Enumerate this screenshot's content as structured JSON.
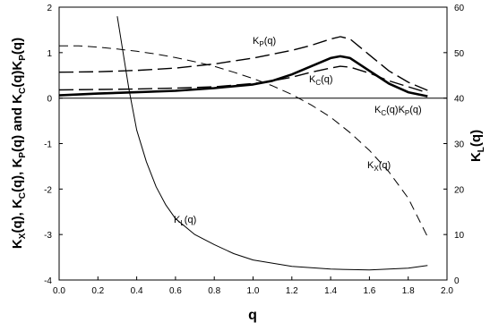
{
  "chart_data": {
    "type": "line",
    "xlabel": "q",
    "ylabel_left": "K_X(q), K_C(q), K_P(q) and K_C(q)K_P(q)",
    "ylabel_right": "K_L(q)",
    "xlim": [
      0.0,
      2.0
    ],
    "ylim_left": [
      -4,
      2
    ],
    "ylim_right": [
      0,
      60
    ],
    "grid": false,
    "x_ticks": [
      "0.0",
      "0.2",
      "0.4",
      "0.6",
      "0.8",
      "1.0",
      "1.2",
      "1.4",
      "1.6",
      "1.8",
      "2.0"
    ],
    "y_left_ticks": [
      "-4",
      "-3",
      "-2",
      "-1",
      "0",
      "1",
      "2"
    ],
    "y_right_ticks": [
      "0",
      "10",
      "20",
      "30",
      "40",
      "50",
      "60"
    ],
    "series": [
      {
        "key": "KP",
        "name": "K_P(q)",
        "axis": "left",
        "style": "long-dash",
        "x": [
          0.0,
          0.2,
          0.4,
          0.6,
          0.8,
          1.0,
          1.2,
          1.3,
          1.4,
          1.45,
          1.5,
          1.6,
          1.7,
          1.8,
          1.9
        ],
        "y": [
          0.57,
          0.58,
          0.61,
          0.66,
          0.75,
          0.88,
          1.05,
          1.16,
          1.3,
          1.35,
          1.3,
          0.95,
          0.6,
          0.35,
          0.17
        ]
      },
      {
        "key": "KC",
        "name": "K_C(q)",
        "axis": "left",
        "style": "long-dash",
        "x": [
          0.0,
          0.2,
          0.4,
          0.6,
          0.8,
          1.0,
          1.1,
          1.2,
          1.3,
          1.4,
          1.45,
          1.5,
          1.6,
          1.7,
          1.8,
          1.9
        ],
        "y": [
          0.18,
          0.19,
          0.2,
          0.22,
          0.25,
          0.32,
          0.38,
          0.46,
          0.57,
          0.66,
          0.7,
          0.68,
          0.55,
          0.38,
          0.25,
          0.12
        ]
      },
      {
        "key": "KCKP",
        "name": "K_C(q)K_P(q)",
        "axis": "left",
        "style": "thick-solid",
        "x": [
          0.0,
          0.2,
          0.4,
          0.6,
          0.8,
          1.0,
          1.1,
          1.2,
          1.3,
          1.4,
          1.45,
          1.5,
          1.6,
          1.7,
          1.8,
          1.9
        ],
        "y": [
          0.06,
          0.1,
          0.13,
          0.16,
          0.22,
          0.3,
          0.38,
          0.52,
          0.7,
          0.88,
          0.92,
          0.88,
          0.6,
          0.32,
          0.13,
          0.04
        ]
      },
      {
        "key": "KX",
        "name": "K_X(q)",
        "axis": "left",
        "style": "dash",
        "x": [
          0.0,
          0.1,
          0.2,
          0.3,
          0.4,
          0.5,
          0.6,
          0.7,
          0.8,
          0.9,
          1.0,
          1.1,
          1.2,
          1.3,
          1.4,
          1.5,
          1.6,
          1.7,
          1.8,
          1.9
        ],
        "y": [
          1.15,
          1.15,
          1.12,
          1.08,
          1.03,
          0.97,
          0.89,
          0.8,
          0.7,
          0.57,
          0.43,
          0.27,
          0.08,
          -0.15,
          -0.42,
          -0.76,
          -1.15,
          -1.62,
          -2.2,
          -3.05
        ]
      },
      {
        "key": "KL",
        "name": "K_L(q)",
        "axis": "right",
        "style": "thin-solid",
        "x": [
          0.3,
          0.33,
          0.36,
          0.4,
          0.45,
          0.5,
          0.55,
          0.6,
          0.7,
          0.8,
          0.9,
          1.0,
          1.2,
          1.4,
          1.6,
          1.8,
          1.9
        ],
        "y": [
          58,
          50,
          42,
          33,
          26,
          20.5,
          16.5,
          13.5,
          10,
          7.8,
          5.8,
          4.4,
          3.0,
          2.4,
          2.2,
          2.6,
          3.2
        ]
      }
    ]
  }
}
